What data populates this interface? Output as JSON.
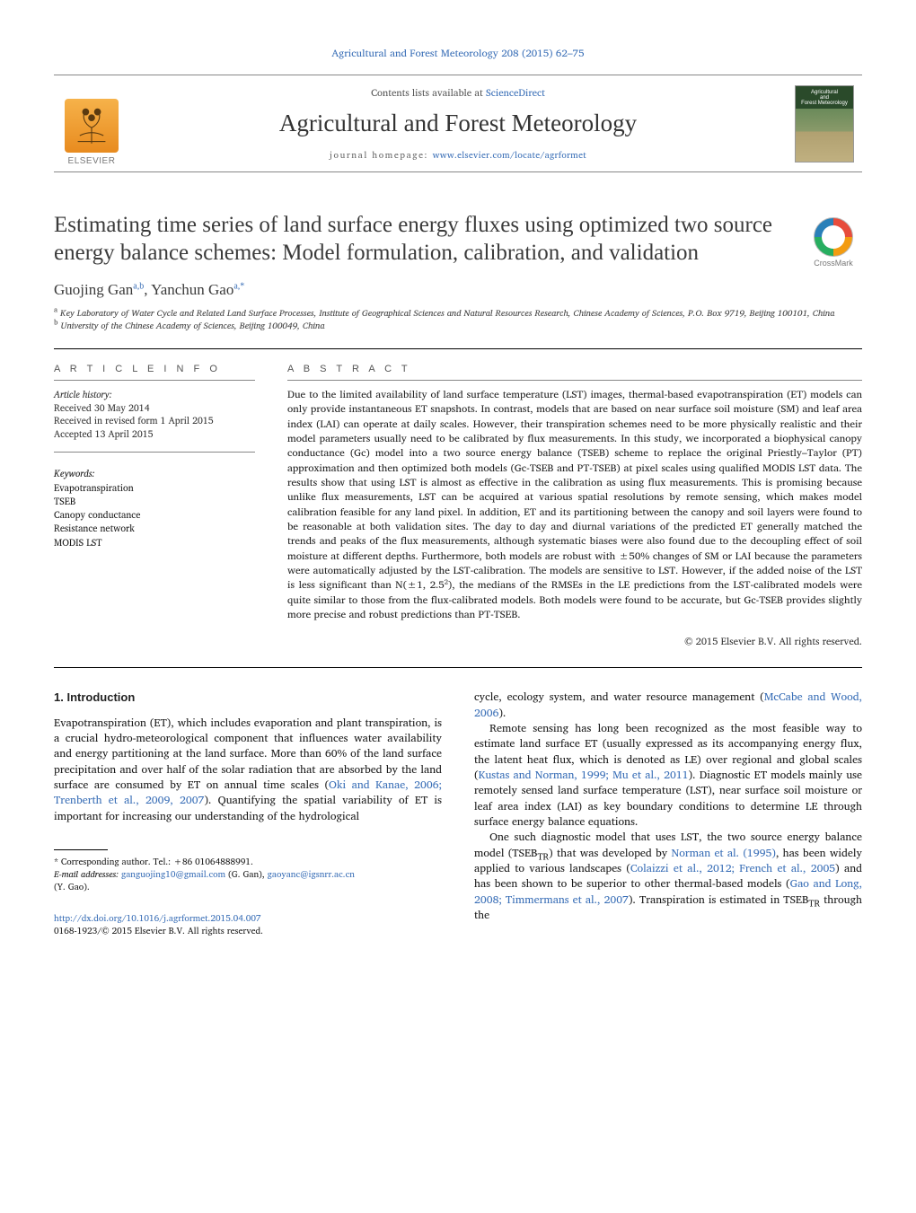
{
  "journal": {
    "top_citation_link_text": "Agricultural and Forest Meteorology 208 (2015) 62–75",
    "contents_prefix": "Contents lists available at ",
    "contents_link": "ScienceDirect",
    "name": "Agricultural and Forest Meteorology",
    "homepage_prefix": "journal homepage: ",
    "homepage_link": "www.elsevier.com/locate/agrformet",
    "publisher_word": "ELSEVIER",
    "cover_line1": "Agricultural",
    "cover_line2": "and",
    "cover_line3": "Forest Meteorology",
    "crossmark_label": "CrossMark"
  },
  "article": {
    "title": "Estimating time series of land surface energy fluxes using optimized two source energy balance schemes: Model formulation, calibration, and validation",
    "authors_html": "Guojing Gan<sup>a,b</sup>, Yanchun Gao<sup>a,*</sup>",
    "affiliations": [
      {
        "sup": "a",
        "text": "Key Laboratory of Water Cycle and Related Land Surface Processes, Institute of Geographical Sciences and Natural Resources Research, Chinese Academy of Sciences, P.O. Box 9719, Beijing 100101, China"
      },
      {
        "sup": "b",
        "text": "University of the Chinese Academy of Sciences, Beijing 100049, China"
      }
    ]
  },
  "info": {
    "section_label": "A R T I C L E   I N F O",
    "history_label": "Article history:",
    "received": "Received 30 May 2014",
    "revised": "Received in revised form 1 April 2015",
    "accepted": "Accepted 13 April 2015",
    "keywords_label": "Keywords:",
    "keywords": [
      "Evapotranspiration",
      "TSEB",
      "Canopy conductance",
      "Resistance network",
      "MODIS LST"
    ]
  },
  "abstract": {
    "section_label": "A B S T R A C T",
    "body": "Due to the limited availability of land surface temperature (LST) images, thermal-based evapotranspiration (ET) models can only provide instantaneous ET snapshots. In contrast, models that are based on near surface soil moisture (SM) and leaf area index (LAI) can operate at daily scales. However, their transpiration schemes need to be more physically realistic and their model parameters usually need to be calibrated by flux measurements. In this study, we incorporated a biophysical canopy conductance (Gc) model into a two source energy balance (TSEB) scheme to replace the original Priestly–Taylor (PT) approximation and then optimized both models (Gc-TSEB and PT-TSEB) at pixel scales using qualified MODIS LST data. The results show that using LST is almost as effective in the calibration as using flux measurements. This is promising because unlike flux measurements, LST can be acquired at various spatial resolutions by remote sensing, which makes model calibration feasible for any land pixel. In addition, ET and its partitioning between the canopy and soil layers were found to be reasonable at both validation sites. The day to day and diurnal variations of the predicted ET generally matched the trends and peaks of the flux measurements, although systematic biases were also found due to the decoupling effect of soil moisture at different depths. Furthermore, both models are robust with ±50% changes of SM or LAI because the parameters were automatically adjusted by the LST-calibration. The models are sensitive to LST. However, if the added noise of the LST is less significant than N(±1, 2.5²), the medians of the RMSEs in the LE predictions from the LST-calibrated models were quite similar to those from the flux-calibrated models. Both models were found to be accurate, but Gc-TSEB provides slightly more precise and robust predictions than PT-TSEB.",
    "copyright": "© 2015 Elsevier B.V. All rights reserved."
  },
  "body": {
    "intro_heading": "1. Introduction",
    "p1_pre": "Evapotranspiration (ET), which includes evaporation and plant transpiration, is a crucial hydro-meteorological component that influences water availability and energy partitioning at the land surface. More than 60% of the land surface precipitation and over half of the solar radiation that are absorbed by the land surface are consumed by ET on annual time scales (",
    "p1_cite1": "Oki and Kanae, 2006; Trenberth et al., 2009, 2007",
    "p1_post": "). Quantifying the spatial variability of ET is important for increasing our understanding of the hydrological",
    "p2_pre": "cycle, ecology system, and water resource management (",
    "p2_cite": "McCabe and Wood, 2006",
    "p2_post": ").",
    "p3_pre": "Remote sensing has long been recognized as the most feasible way to estimate land surface ET (usually expressed as its accompanying energy flux, the latent heat flux, which is denoted as LE) over regional and global scales (",
    "p3_cite": "Kustas and Norman, 1999; Mu et al., 2011",
    "p3_post": "). Diagnostic ET models mainly use remotely sensed land surface temperature (LST), near surface soil moisture or leaf area index (LAI) as key boundary conditions to determine LE through surface energy balance equations.",
    "p4_pre": "One such diagnostic model that uses LST, the two source energy balance model (TSEB",
    "p4_sub1": "TR",
    "p4_mid1": ") that was developed by ",
    "p4_cite1": "Norman et al. (1995)",
    "p4_mid2": ", has been widely applied to various landscapes (",
    "p4_cite2": "Colaizzi et al., 2012; French et al., 2005",
    "p4_mid3": ") and has been shown to be superior to other thermal-based models (",
    "p4_cite3": "Gao and Long, 2008; Timmermans et al., 2007",
    "p4_mid4": "). Transpiration is estimated in TSEB",
    "p4_sub2": "TR",
    "p4_post": " through the"
  },
  "footnotes": {
    "corr": "* Corresponding author. Tel.: +86 01064888991.",
    "email_label": "E-mail addresses: ",
    "email1": "ganguojing10@gmail.com",
    "email1_who": " (G. Gan), ",
    "email2": "gaoyanc@igsnrr.ac.cn",
    "email2_who": " (Y. Gao)."
  },
  "doi": {
    "link": "http://dx.doi.org/10.1016/j.agrformet.2015.04.007",
    "issn_line": "0168-1923/© 2015 Elsevier B.V. All rights reserved."
  },
  "colors": {
    "link": "#3a6fb7",
    "text": "#1a1a1a",
    "muted": "#555555"
  }
}
